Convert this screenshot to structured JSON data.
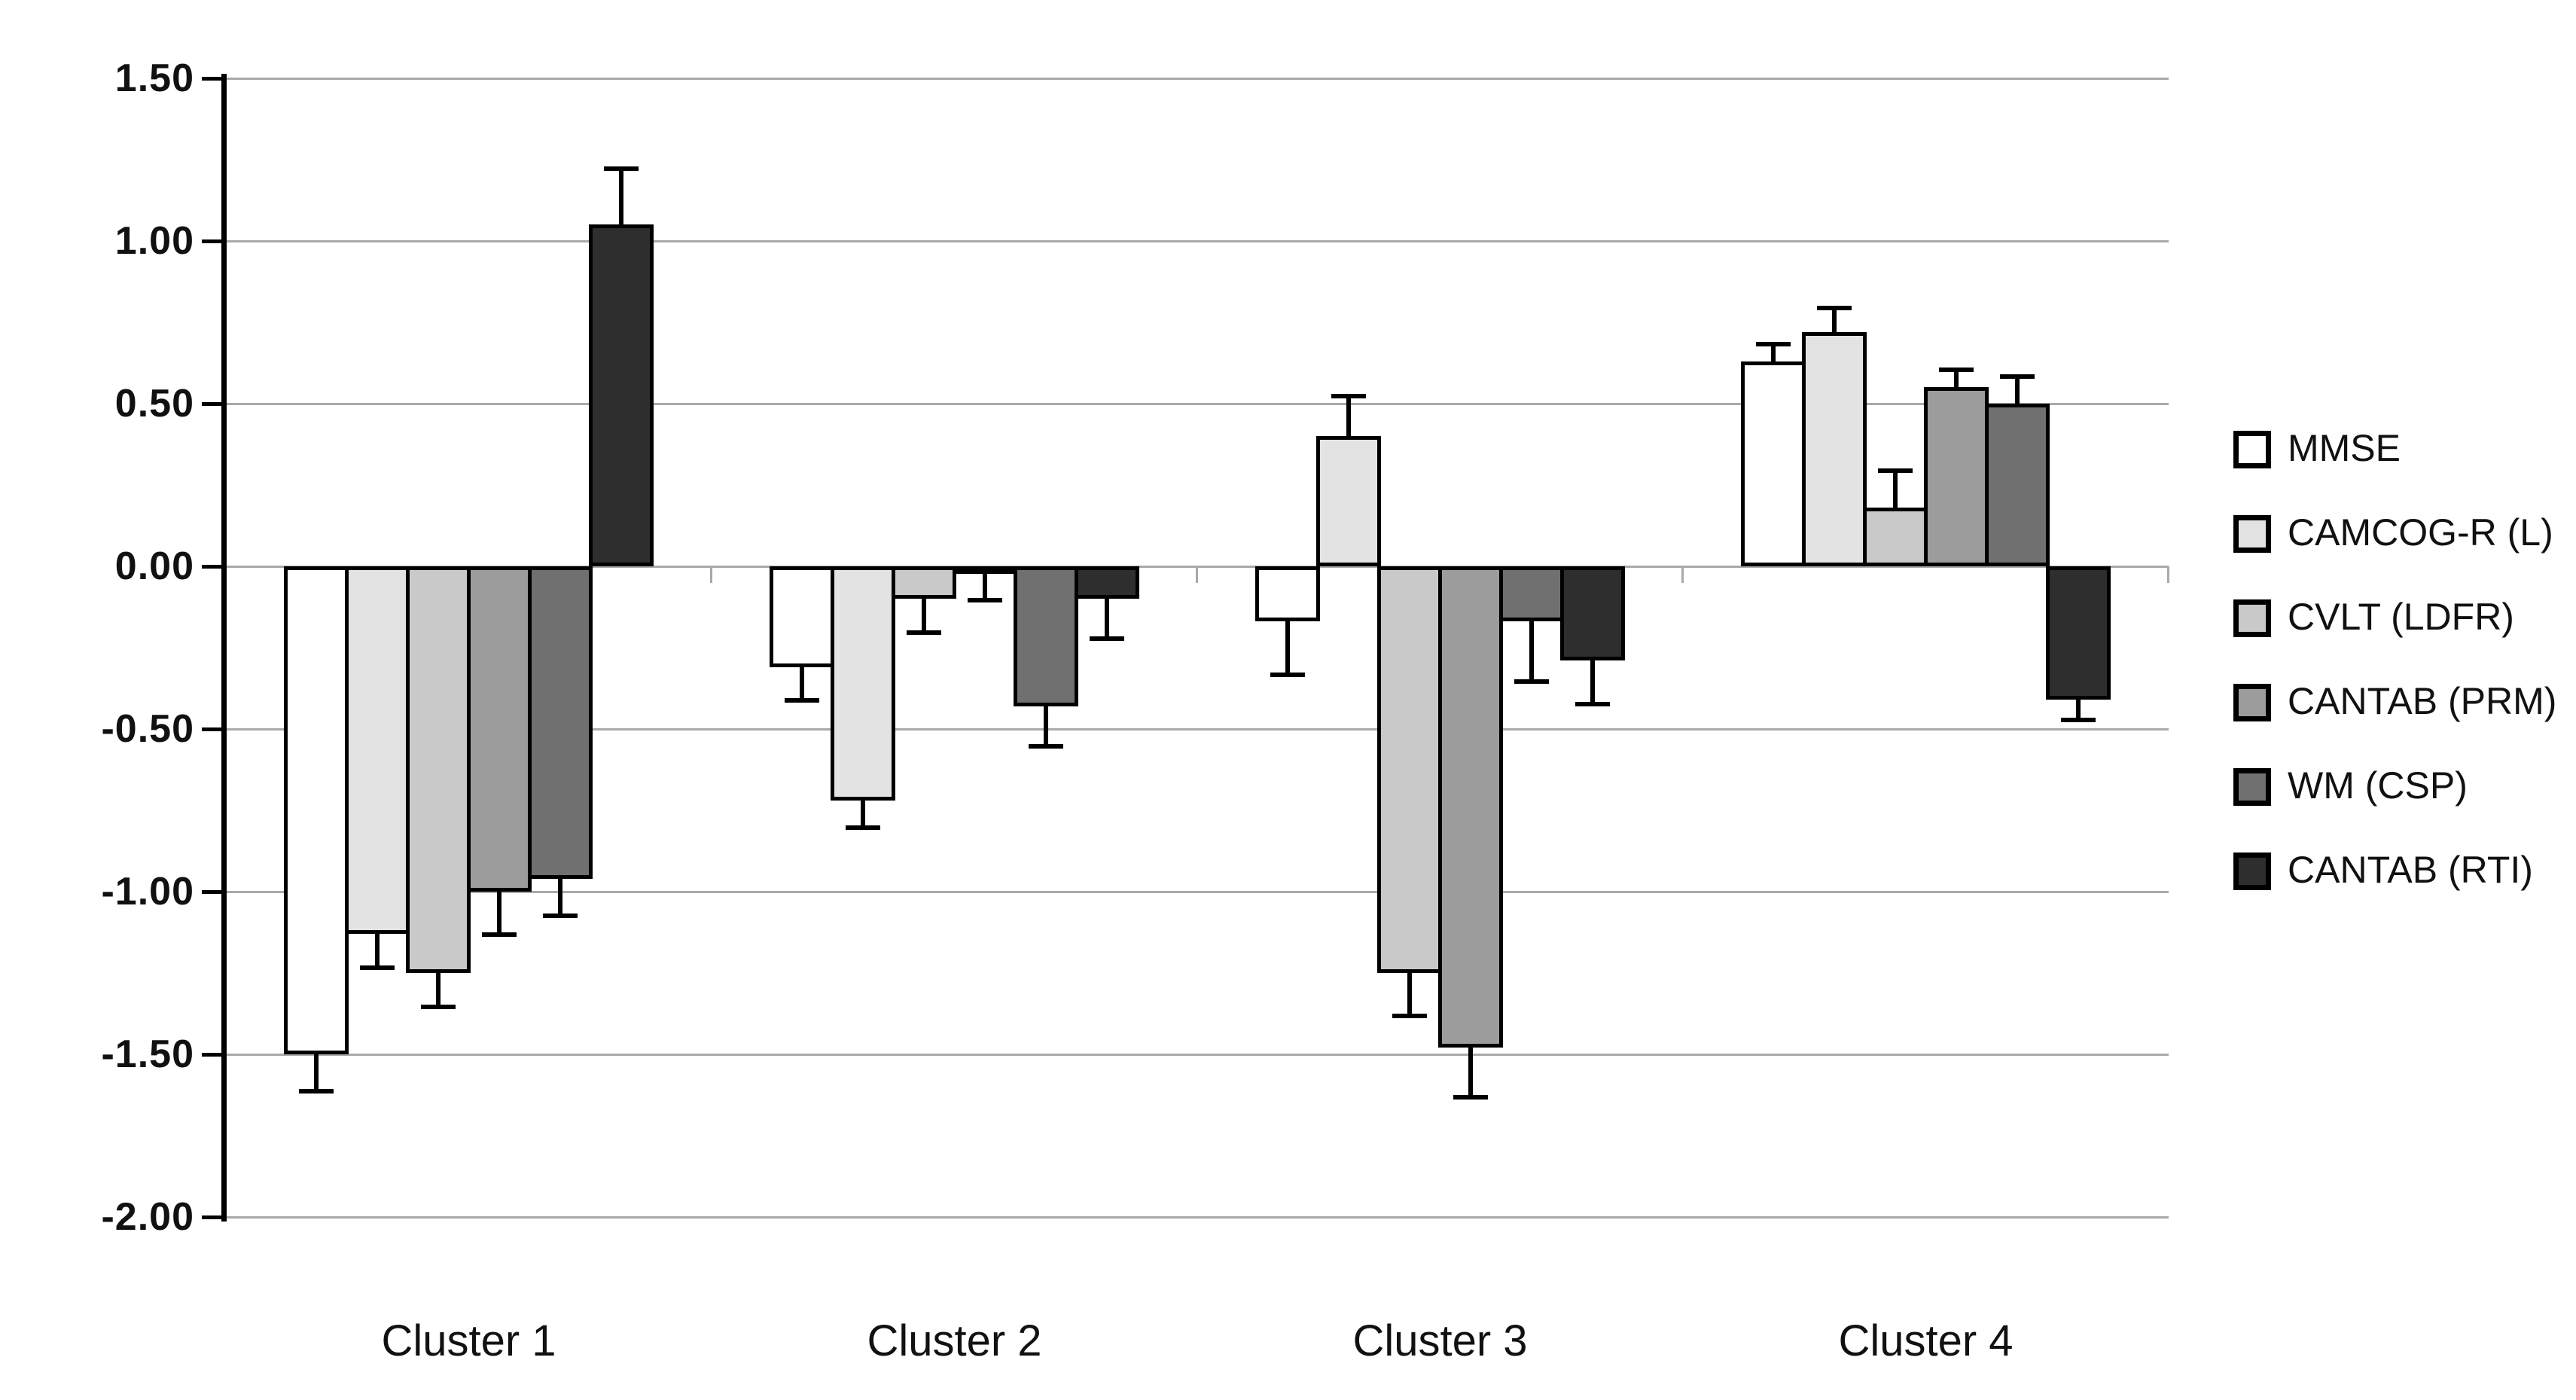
{
  "chart_data": {
    "type": "bar",
    "title": "",
    "xlabel": "",
    "ylabel": "",
    "categories": [
      "Cluster 1",
      "Cluster 2",
      "Cluster 3",
      "Cluster 4"
    ],
    "series": [
      {
        "name": "MMSE",
        "color": "#ffffff",
        "values": [
          -1.5,
          -0.31,
          -0.17,
          0.63
        ],
        "errors": [
          0.12,
          0.11,
          0.17,
          0.06
        ]
      },
      {
        "name": "CAMCOG-R (L)",
        "color": "#e3e3e3",
        "values": [
          -1.13,
          -0.72,
          0.4,
          0.72
        ],
        "errors": [
          0.11,
          0.09,
          0.13,
          0.08
        ]
      },
      {
        "name": "CVLT (LDFR)",
        "color": "#c9c9c9",
        "values": [
          -1.25,
          -0.1,
          -1.25,
          0.18
        ],
        "errors": [
          0.11,
          0.11,
          0.14,
          0.12
        ]
      },
      {
        "name": "CANTAB (PRM)",
        "color": "#9c9c9c",
        "values": [
          -1.0,
          -0.02,
          -1.48,
          0.55
        ],
        "errors": [
          0.14,
          0.09,
          0.16,
          0.06
        ]
      },
      {
        "name": "WM (CSP)",
        "color": "#707070",
        "values": [
          -0.96,
          -0.43,
          -0.17,
          0.5
        ],
        "errors": [
          0.12,
          0.13,
          0.19,
          0.09
        ]
      },
      {
        "name": "CANTAB (RTI)",
        "color": "#2e2e2e",
        "values": [
          1.05,
          -0.1,
          -0.29,
          -0.41
        ],
        "errors": [
          0.18,
          0.13,
          0.14,
          0.07
        ]
      }
    ],
    "y_ticks": [
      "1.50",
      "1.00",
      "0.50",
      "0.00",
      "-0.50",
      "-1.00",
      "-1.50",
      "-2.00"
    ],
    "ylim": [
      -2.0,
      1.5
    ],
    "grid": true,
    "legend_position": "right",
    "error_bars": "one-sided, away from zero",
    "bar_outline_color": "#000000",
    "gridline_color": "#a9a9a9"
  }
}
